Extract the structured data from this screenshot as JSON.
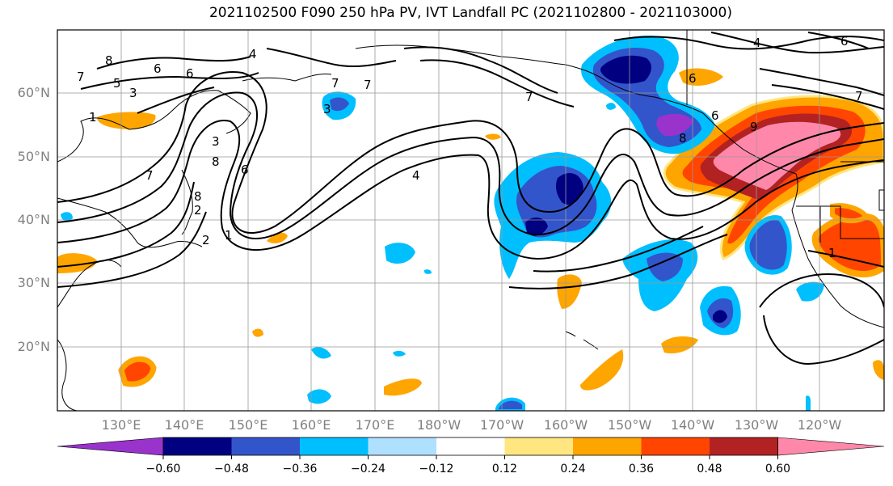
{
  "title": "2021102500 F090 250 hPa PV, IVT Landfall PC (2021102800 - 2021103000)",
  "lat_labels": [
    "60°N",
    "50°N",
    "40°N",
    "30°N",
    "20°N"
  ],
  "lon_labels": [
    "130°E",
    "140°E",
    "150°E",
    "160°E",
    "170°E",
    "180°W",
    "170°W",
    "160°W",
    "150°W",
    "140°W",
    "130°W",
    "120°W"
  ],
  "colorbar": {
    "colors": [
      "#9933cc",
      "#000080",
      "#3355cc",
      "#00bfff",
      "#b0e0ff",
      "#ffffff",
      "#ffe680",
      "#ffa500",
      "#ff4500",
      "#b22222",
      "#ff88aa"
    ],
    "tick_labels": [
      "−0.60",
      "−0.48",
      "−0.36",
      "−0.24",
      "−0.12",
      "0.12",
      "0.24",
      "0.36",
      "0.48",
      "0.60"
    ]
  },
  "contour_labels": [
    "8",
    "7",
    "6",
    "5",
    "4",
    "3",
    "2",
    "1",
    "7",
    "6",
    "8",
    "7",
    "3",
    "7",
    "4",
    "6",
    "7",
    "9",
    "6",
    "8",
    "6",
    "3",
    "2",
    "1",
    "1",
    "8",
    "6",
    "4",
    "7"
  ]
}
